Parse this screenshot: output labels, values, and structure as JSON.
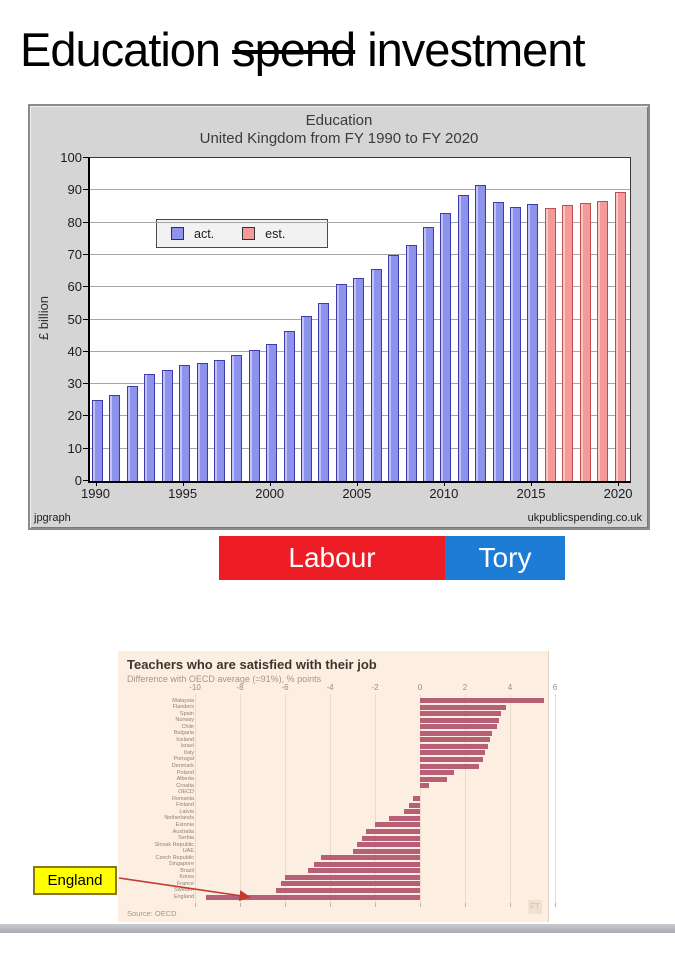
{
  "slide": {
    "title": {
      "prefix": "Education ",
      "struck": "spend",
      "suffix": " investment"
    }
  },
  "party_bar": {
    "labour": {
      "label": "Labour",
      "color": "#ee1c25"
    },
    "tory": {
      "label": "Tory",
      "color": "#1d7cd6"
    }
  },
  "callout": {
    "label": "England",
    "bg": "#ffff00"
  },
  "chart_data": [
    {
      "type": "bar",
      "title": "Education",
      "subtitle": "United Kingdom from FY 1990 to FY 2020",
      "ylabel": "£ billion",
      "ylim": [
        0,
        100
      ],
      "ytick_step": 10,
      "x_start_year": 1990,
      "x_tick_years": [
        1990,
        1995,
        2000,
        2005,
        2010,
        2015,
        2020
      ],
      "legend_position": "top-left",
      "grid": "horizontal",
      "legend": [
        {
          "name": "act.",
          "color": "#8d92ea",
          "border": "#3c3cae"
        },
        {
          "name": "est.",
          "color": "#f49a9a",
          "border": "#c24d4d"
        }
      ],
      "series": [
        {
          "name": "act.",
          "start_year": 1990,
          "values": [
            25,
            26.5,
            29.5,
            33,
            34.5,
            36,
            36.5,
            37.5,
            39,
            40.5,
            42.5,
            46.5,
            51,
            55,
            61,
            63,
            65.5,
            70,
            73,
            78.5,
            83,
            88.5,
            91.5,
            86.5,
            84.8,
            85.8
          ]
        },
        {
          "name": "est.",
          "start_year": 2016,
          "values": [
            84.5,
            85.5,
            86.2,
            86.6,
            89.5
          ]
        }
      ],
      "footer_left": "jpgraph",
      "footer_right": "ukpublicspending.co.uk"
    },
    {
      "type": "bar-horizontal",
      "title": "Teachers who are satisfied with their job",
      "subtitle": "Difference with OECD average (=91%), % points",
      "xlim": [
        -10,
        6
      ],
      "xticks": [
        -10,
        -8,
        -6,
        -4,
        -2,
        0,
        2,
        4,
        6
      ],
      "bar_color": "#b75f76",
      "categories": [
        "Malaysia",
        "Flanders",
        "Spain",
        "Norway",
        "Chile",
        "Bulgaria",
        "Iceland",
        "Israel",
        "Italy",
        "Portugal",
        "Denmark",
        "Poland",
        "Alberta",
        "Croatia",
        "OECD",
        "Romania",
        "Finland",
        "Latvia",
        "Netherlands",
        "Estonia",
        "Australia",
        "Serbia",
        "Slovak Republic",
        "UAE",
        "Czech Republic",
        "Singapore",
        "Brazil",
        "Korea",
        "France",
        "Sweden",
        "England"
      ],
      "values": [
        5.5,
        3.8,
        3.6,
        3.5,
        3.4,
        3.2,
        3.1,
        3.0,
        2.9,
        2.8,
        2.6,
        1.5,
        1.2,
        0.4,
        0,
        -0.3,
        -0.5,
        -0.7,
        -1.4,
        -2.0,
        -2.4,
        -2.6,
        -2.8,
        -3.0,
        -4.4,
        -4.7,
        -5.0,
        -6.0,
        -6.2,
        -6.4,
        -9.5
      ],
      "source": "Source: OECD",
      "logo": "FT"
    }
  ]
}
